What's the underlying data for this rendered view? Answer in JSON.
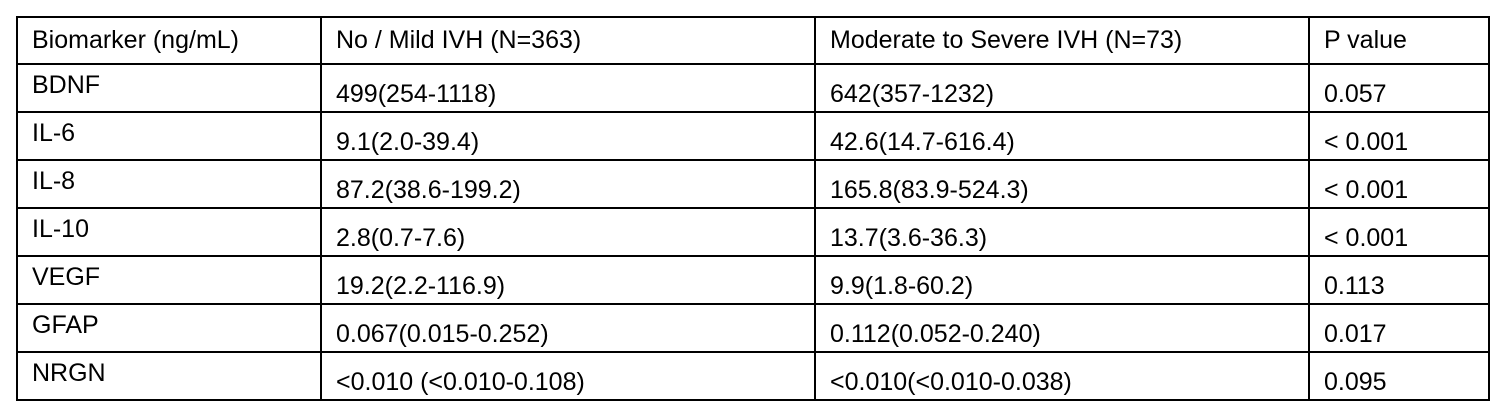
{
  "table": {
    "header": [
      "Biomarker (ng/mL)",
      "No / Mild IVH (N=363)",
      "Moderate to Severe IVH (N=73)",
      "P value"
    ],
    "rows": [
      [
        "BDNF",
        "499(254-1118)",
        "642(357-1232)",
        "0.057"
      ],
      [
        "IL-6",
        "9.1(2.0-39.4)",
        "42.6(14.7-616.4)",
        "< 0.001"
      ],
      [
        "IL-8",
        "87.2(38.6-199.2)",
        "165.8(83.9-524.3)",
        "< 0.001"
      ],
      [
        "IL-10",
        "2.8(0.7-7.6)",
        "13.7(3.6-36.3)",
        "< 0.001"
      ],
      [
        "VEGF",
        "19.2(2.2-116.9)",
        "9.9(1.8-60.2)",
        "0.113"
      ],
      [
        "GFAP",
        "0.067(0.015-0.252)",
        "0.112(0.052-0.240)",
        "0.017"
      ],
      [
        "NRGN",
        "<0.010 (<0.010-0.108)",
        "<0.010(<0.010-0.038)",
        "0.095"
      ]
    ]
  }
}
